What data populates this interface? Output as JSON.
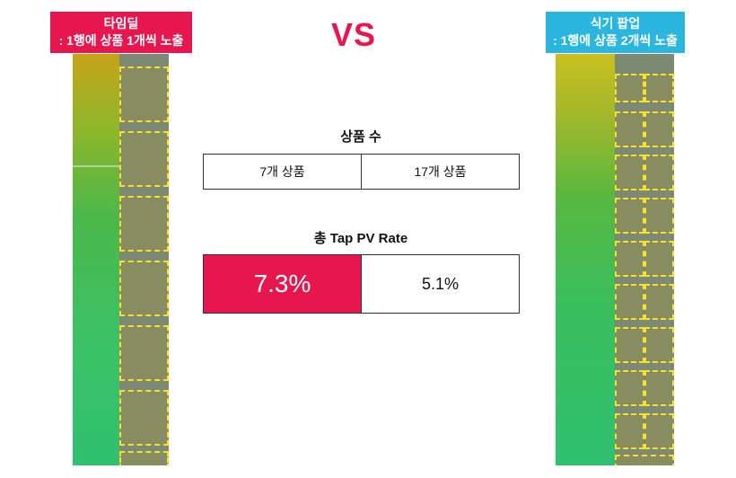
{
  "left_label": {
    "line1": "타임딜",
    "line2": ": 1행에 상품 1개씩 노출"
  },
  "vs": "VS",
  "right_label": {
    "line1": "식기 팝업",
    "line2": ": 1행에 상품 2개씩 노출"
  },
  "product_count": {
    "title": "상품 수",
    "left": "7개 상품",
    "right": "17개 상품"
  },
  "tap_pv_rate": {
    "title": "총 Tap PV Rate",
    "left": "7.3%",
    "right": "5.1%"
  },
  "colors": {
    "accent_red": "#e8164f",
    "accent_cyan": "#2bb6df",
    "highlight": "#f7e12a"
  }
}
